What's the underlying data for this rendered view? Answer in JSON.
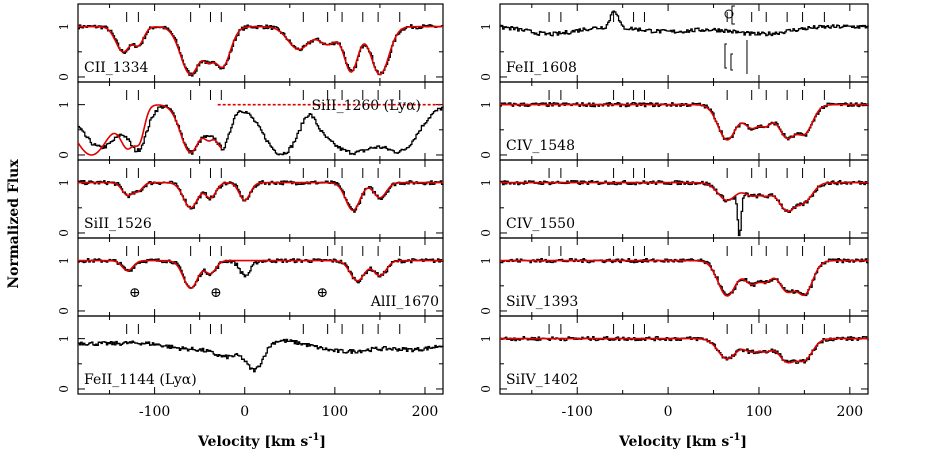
{
  "chart_data": {
    "type": "line",
    "title": "",
    "ylabel": "Normalized Flux",
    "xlabel_left": "Velocity [km s",
    "xlabel_right": "Velocity [km s",
    "xlabel_sup": "-1",
    "xlabel_close": "]",
    "xlim": [
      -185,
      220
    ],
    "ylim": [
      -0.1,
      1.45
    ],
    "xticks": [
      -100,
      0,
      100,
      200
    ],
    "xtick_labels": [
      "-100",
      "0",
      "100",
      "200"
    ],
    "ytick_labels": [
      "0",
      "1"
    ],
    "component_velocities": [
      -131,
      -118,
      -60,
      -38,
      -26,
      65,
      92,
      108,
      131,
      148,
      172
    ],
    "columns": [
      {
        "name": "left",
        "panels": [
          {
            "label": "CII_1334",
            "has_fit": true,
            "label_pos": "bottom-left",
            "data_absorbers": [
              [
                -135,
                0.5,
                8
              ],
              [
                -118,
                0.35,
                6
              ],
              [
                -60,
                0.95,
                11
              ],
              [
                -40,
                0.6,
                7
              ],
              [
                -25,
                0.8,
                9
              ],
              [
                60,
                0.45,
                12
              ],
              [
                92,
                0.35,
                10
              ],
              [
                118,
                0.9,
                8
              ],
              [
                150,
                0.95,
                10
              ]
            ],
            "fit_absorbers": [
              [
                -135,
                0.5,
                8
              ],
              [
                -118,
                0.35,
                6
              ],
              [
                -60,
                0.95,
                11
              ],
              [
                -40,
                0.6,
                7
              ],
              [
                -25,
                0.8,
                9
              ],
              [
                60,
                0.45,
                12
              ],
              [
                92,
                0.35,
                10
              ],
              [
                118,
                0.9,
                8
              ],
              [
                150,
                0.95,
                10
              ]
            ]
          },
          {
            "label": "SiII_1260 (Lyα)",
            "has_fit": true,
            "dashed_continuum": true,
            "label_pos": "top-right",
            "data_absorbers": [
              [
                -160,
                0.85,
                22
              ],
              [
                -120,
                0.9,
                10
              ],
              [
                -60,
                0.95,
                11
              ],
              [
                -40,
                0.5,
                8
              ],
              [
                -25,
                0.85,
                8
              ],
              [
                40,
                0.97,
                20
              ],
              [
                120,
                0.95,
                35
              ],
              [
                170,
                0.9,
                20
              ]
            ],
            "data_emission": [
              [
                70,
                0.35,
                8
              ]
            ],
            "fit_absorbers": [
              [
                -170,
                1.0,
                20
              ],
              [
                -130,
                0.85,
                9
              ],
              [
                -118,
                0.7,
                6
              ],
              [
                -60,
                0.95,
                11
              ],
              [
                -40,
                0.6,
                7
              ],
              [
                -25,
                0.85,
                8
              ]
            ]
          },
          {
            "label": "SiII_1526",
            "has_fit": true,
            "label_pos": "bottom-left",
            "data_absorbers": [
              [
                -130,
                0.25,
                6
              ],
              [
                -118,
                0.15,
                5
              ],
              [
                -60,
                0.5,
                8
              ],
              [
                -38,
                0.3,
                6
              ],
              [
                0,
                0.35,
                6
              ],
              [
                120,
                0.55,
                8
              ],
              [
                150,
                0.3,
                7
              ]
            ],
            "fit_absorbers": [
              [
                -130,
                0.25,
                6
              ],
              [
                -118,
                0.15,
                5
              ],
              [
                -60,
                0.5,
                8
              ],
              [
                -38,
                0.3,
                6
              ],
              [
                0,
                0.35,
                6
              ],
              [
                120,
                0.55,
                8
              ],
              [
                150,
                0.3,
                7
              ]
            ]
          },
          {
            "label": "AlII_1670",
            "has_fit": true,
            "label_pos": "bottom-right",
            "markers": [
              -122,
              -32,
              86
            ],
            "marker_symbol": "⊕",
            "data_absorbers": [
              [
                -130,
                0.2,
                6
              ],
              [
                -60,
                0.55,
                8
              ],
              [
                -38,
                0.25,
                6
              ],
              [
                0,
                0.3,
                6
              ],
              [
                125,
                0.4,
                8
              ],
              [
                150,
                0.3,
                7
              ]
            ],
            "fit_absorbers": [
              [
                -130,
                0.2,
                6
              ],
              [
                -60,
                0.55,
                8
              ],
              [
                -38,
                0.25,
                6
              ],
              [
                125,
                0.4,
                8
              ],
              [
                150,
                0.3,
                7
              ]
            ]
          },
          {
            "label": "FeII_1144 (Lyα)",
            "has_fit": false,
            "label_pos": "bottom-left",
            "data_absorbers": [
              [
                -160,
                0.1,
                40
              ],
              [
                -60,
                0.2,
                30
              ],
              [
                10,
                0.6,
                10
              ],
              [
                -20,
                0.3,
                15
              ],
              [
                110,
                0.25,
                35
              ],
              [
                190,
                0.2,
                30
              ]
            ]
          }
        ]
      },
      {
        "name": "right",
        "panels": [
          {
            "label": "FeII_1608",
            "has_fit": false,
            "label_pos": "bottom-left",
            "fe_markers": true,
            "data_absorbers": [
              [
                -130,
                0.15,
                25
              ],
              [
                0,
                0.1,
                30
              ],
              [
                100,
                0.15,
                30
              ]
            ],
            "data_emission": [
              [
                -60,
                0.35,
                4
              ]
            ]
          },
          {
            "label": "CIV_1548",
            "has_fit": true,
            "label_pos": "bottom-left",
            "data_absorbers": [
              [
                65,
                0.7,
                10
              ],
              [
                92,
                0.45,
                9
              ],
              [
                108,
                0.35,
                7
              ],
              [
                131,
                0.65,
                10
              ],
              [
                150,
                0.55,
                9
              ]
            ],
            "fit_absorbers": [
              [
                65,
                0.7,
                10
              ],
              [
                92,
                0.45,
                9
              ],
              [
                108,
                0.35,
                7
              ],
              [
                131,
                0.65,
                10
              ],
              [
                150,
                0.55,
                9
              ]
            ]
          },
          {
            "label": "CIV_1550",
            "has_fit": true,
            "label_pos": "bottom-left",
            "data_absorbers": [
              [
                65,
                0.35,
                10
              ],
              [
                92,
                0.25,
                9
              ],
              [
                108,
                0.2,
                7
              ],
              [
                131,
                0.55,
                10
              ],
              [
                150,
                0.35,
                9
              ],
              [
                78,
                1.1,
                2
              ]
            ],
            "fit_absorbers": [
              [
                65,
                0.35,
                10
              ],
              [
                92,
                0.25,
                9
              ],
              [
                108,
                0.2,
                7
              ],
              [
                131,
                0.55,
                10
              ],
              [
                150,
                0.35,
                9
              ]
            ]
          },
          {
            "label": "SiIV_1393",
            "has_fit": true,
            "label_pos": "bottom-left",
            "data_absorbers": [
              [
                65,
                0.7,
                10
              ],
              [
                92,
                0.45,
                9
              ],
              [
                108,
                0.35,
                7
              ],
              [
                131,
                0.6,
                10
              ],
              [
                150,
                0.65,
                9
              ]
            ],
            "fit_absorbers": [
              [
                65,
                0.7,
                10
              ],
              [
                92,
                0.45,
                9
              ],
              [
                108,
                0.35,
                7
              ],
              [
                131,
                0.6,
                10
              ],
              [
                150,
                0.65,
                9
              ]
            ]
          },
          {
            "label": "SiIV_1402",
            "has_fit": true,
            "label_pos": "bottom-left",
            "data_absorbers": [
              [
                65,
                0.4,
                10
              ],
              [
                92,
                0.25,
                9
              ],
              [
                108,
                0.2,
                7
              ],
              [
                131,
                0.45,
                10
              ],
              [
                150,
                0.4,
                9
              ]
            ],
            "fit_absorbers": [
              [
                65,
                0.4,
                10
              ],
              [
                92,
                0.25,
                9
              ],
              [
                108,
                0.2,
                7
              ],
              [
                131,
                0.45,
                10
              ],
              [
                150,
                0.4,
                9
              ]
            ]
          }
        ]
      }
    ],
    "colors": {
      "data": "#000000",
      "fit": "#e00000",
      "axes": "#000000"
    }
  }
}
